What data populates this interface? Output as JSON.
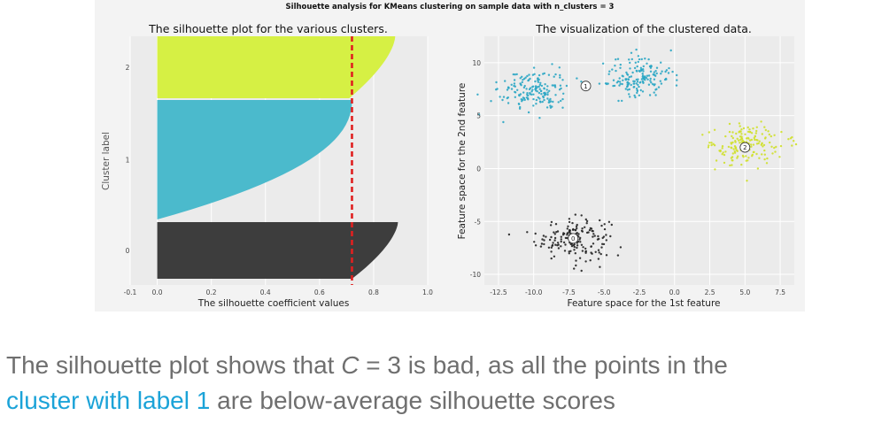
{
  "figure": {
    "suptitle": "Silhouette analysis for KMeans clustering on sample data with n_clusters = 3"
  },
  "chart_data": [
    {
      "type": "area",
      "title": "The silhouette plot for the various clusters.",
      "xlabel": "The silhouette coefficient values",
      "ylabel": "Cluster label",
      "xlim": [
        -0.1,
        1.0
      ],
      "xticks": [
        "-0.1",
        "0.0",
        "0.2",
        "0.4",
        "0.6",
        "0.8",
        "1.0"
      ],
      "clusters": [
        {
          "label": "0",
          "color": "#3d3d3d",
          "max_value": 0.89,
          "min_value": 0.72
        },
        {
          "label": "1",
          "color": "#4bbacc",
          "max_value": 0.72,
          "min_value": 0.0
        },
        {
          "label": "2",
          "color": "#d6f044",
          "max_value": 0.88,
          "min_value": 0.71
        }
      ],
      "average_line": {
        "value": 0.72,
        "color": "#e02020"
      }
    },
    {
      "type": "scatter",
      "title": "The visualization of the clustered data.",
      "xlabel": "Feature space for the 1st feature",
      "ylabel": "Feature space for the 2nd feature",
      "xlim": [
        -13.5,
        8.5
      ],
      "ylim": [
        -11,
        12.5
      ],
      "xticks": [
        "-12.5",
        "-10.0",
        "-7.5",
        "-5.0",
        "-2.5",
        "0.0",
        "2.5",
        "5.0",
        "7.5"
      ],
      "yticks": [
        "-10",
        "-5",
        "0",
        "5",
        "10"
      ],
      "series": [
        {
          "cluster": "0",
          "color": "#222222",
          "center": [
            -7.2,
            -6.6
          ],
          "spread": [
            1.3,
            1.0
          ]
        },
        {
          "cluster": "1a",
          "color": "#2aa6c4",
          "center": [
            -10.0,
            7.4
          ],
          "spread": [
            1.2,
            1.0
          ]
        },
        {
          "cluster": "1b",
          "color": "#2aa6c4",
          "center": [
            -2.5,
            8.6
          ],
          "spread": [
            1.2,
            1.0
          ]
        },
        {
          "cluster": "2",
          "color": "#cfe02a",
          "center": [
            5.0,
            2.2
          ],
          "spread": [
            1.3,
            1.0
          ]
        }
      ],
      "centers": [
        {
          "label": "0",
          "x": -7.2,
          "y": -6.6
        },
        {
          "label": "1",
          "x": -6.3,
          "y": 7.8
        },
        {
          "label": "2",
          "x": 5.0,
          "y": 2.0
        }
      ]
    }
  ],
  "caption": {
    "line1_pre": "The silhouette plot shows that ",
    "line1_var": "C",
    "line1_post": " = 3 is bad, as all the points in the",
    "line2_hl": "cluster with label 1",
    "line2_post": " are below-average silhouette scores"
  }
}
